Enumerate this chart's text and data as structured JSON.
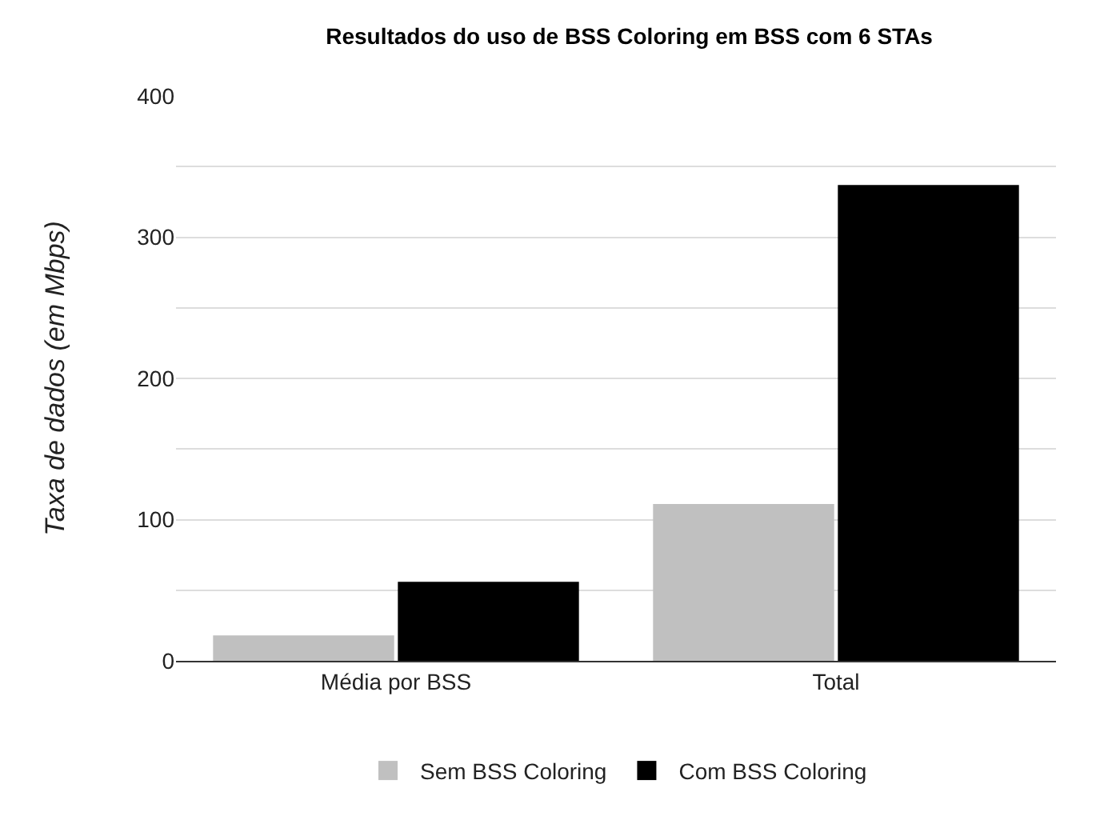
{
  "chart_data": {
    "type": "bar",
    "title": "Resultados do uso de BSS Coloring em BSS com 6 STAs",
    "ylabel": "Taxa de dados (em Mbps)",
    "categories": [
      "Média por BSS",
      "Total"
    ],
    "series": [
      {
        "name": "Sem BSS Coloring",
        "color": "#c0c0c0",
        "values": [
          18,
          111
        ]
      },
      {
        "name": "Com BSS Coloring",
        "color": "#000000",
        "values": [
          56,
          337
        ]
      }
    ],
    "ylim": [
      0,
      400
    ],
    "yticks": [
      0,
      {
        "value": 50,
        "label": null
      },
      100,
      {
        "value": 150,
        "label": null
      },
      200,
      {
        "value": 250,
        "label": null
      },
      300,
      {
        "value": 350,
        "label": null
      },
      400
    ],
    "grid": "y",
    "legend": "bottom"
  }
}
